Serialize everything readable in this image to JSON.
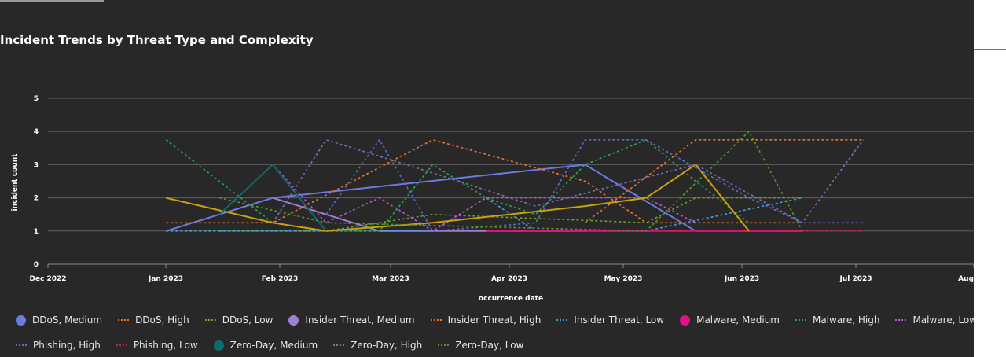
{
  "title": "Incident Trends by Threat Type and Complexity",
  "chart_data": {
    "type": "line",
    "title": "Incident Trends by Threat Type and Complexity",
    "xlabel": "occurrence date",
    "ylabel": "incident count",
    "x_ticks": [
      "Dec 2022",
      "Jan 2023",
      "Feb 2023",
      "Mar 2023",
      "Apr 2023",
      "May 2023",
      "Jun 2023",
      "Jul 2023",
      "Aug"
    ],
    "y_ticks": [
      "0",
      "1",
      "2",
      "3",
      "4",
      "5"
    ],
    "ylim": [
      0,
      5
    ],
    "xlim": [
      "2022-12-01",
      "2023-08-01"
    ],
    "grid": true,
    "legend_position": "bottom",
    "series": [
      {
        "name": "DDoS, Medium",
        "color": "#6b7be0",
        "style": "solid",
        "points": [
          [
            "2023-01-01",
            1
          ],
          [
            "2023-01-29",
            2
          ],
          [
            "2023-04-21",
            3
          ],
          [
            "2023-05-20",
            1
          ],
          [
            "2023-06-17",
            1
          ]
        ]
      },
      {
        "name": "DDoS, High",
        "color": "#e8742c",
        "style": "dash",
        "points": [
          [
            "2023-01-01",
            1.25
          ],
          [
            "2023-01-29",
            1.25
          ],
          [
            "2023-03-12",
            3.75
          ],
          [
            "2023-04-21",
            2.5
          ],
          [
            "2023-05-07",
            1.25
          ],
          [
            "2023-06-17",
            1.25
          ]
        ]
      },
      {
        "name": "DDoS, Low",
        "color": "#6aa12a",
        "style": "dash",
        "points": [
          [
            "2023-01-15",
            1
          ],
          [
            "2023-02-12",
            1
          ],
          [
            "2023-03-12",
            1.5
          ],
          [
            "2023-05-07",
            1.25
          ],
          [
            "2023-05-20",
            2
          ],
          [
            "2023-06-17",
            2
          ]
        ]
      },
      {
        "name": "Insider Threat, Medium",
        "color": "#a07fd0",
        "style": "solid",
        "points": [
          [
            "2023-01-29",
            2
          ],
          [
            "2023-02-12",
            1.5
          ],
          [
            "2023-02-26",
            1
          ],
          [
            "2023-04-21",
            1
          ]
        ]
      },
      {
        "name": "Insider Threat, High",
        "color": "#e8742c",
        "style": "dash",
        "points": [
          [
            "2023-04-21",
            1.25
          ],
          [
            "2023-05-20",
            3.75
          ],
          [
            "2023-07-03",
            3.75
          ]
        ]
      },
      {
        "name": "Insider Threat, Low",
        "color": "#3fa0e0",
        "style": "dash",
        "points": [
          [
            "2023-01-01",
            1
          ],
          [
            "2023-03-12",
            1
          ],
          [
            "2023-03-26",
            2
          ],
          [
            "2023-04-08",
            1
          ],
          [
            "2023-05-07",
            1
          ],
          [
            "2023-06-17",
            2
          ]
        ]
      },
      {
        "name": "Malware, Medium",
        "color": "#e0108a",
        "style": "solid",
        "points": [
          [
            "2023-03-26",
            1
          ],
          [
            "2023-04-08",
            1
          ],
          [
            "2023-05-07",
            1
          ],
          [
            "2023-06-17",
            1
          ]
        ]
      },
      {
        "name": "Malware, High",
        "color": "#2aa54a",
        "style": "dash",
        "points": [
          [
            "2023-01-01",
            3.75
          ],
          [
            "2023-01-29",
            1.25
          ],
          [
            "2023-02-12",
            1
          ],
          [
            "2023-02-26",
            1
          ],
          [
            "2023-03-12",
            3
          ],
          [
            "2023-03-26",
            2
          ],
          [
            "2023-04-08",
            1.5
          ],
          [
            "2023-04-21",
            3
          ],
          [
            "2023-05-07",
            3.75
          ],
          [
            "2023-05-20",
            2.5
          ],
          [
            "2023-06-03",
            1.25
          ]
        ]
      },
      {
        "name": "Malware, Low",
        "color": "#c050d8",
        "style": "dash",
        "points": [
          [
            "2023-01-29",
            3
          ],
          [
            "2023-02-12",
            1.25
          ],
          [
            "2023-02-26",
            2
          ],
          [
            "2023-03-12",
            1
          ],
          [
            "2023-03-26",
            2
          ],
          [
            "2023-04-21",
            2
          ],
          [
            "2023-05-07",
            2
          ],
          [
            "2023-05-20",
            1.25
          ]
        ]
      },
      {
        "name": "Phishing, Medium",
        "color": "#c8a20e",
        "style": "solid",
        "points": [
          [
            "2023-01-01",
            2
          ],
          [
            "2023-01-29",
            1.25
          ],
          [
            "2023-02-12",
            1
          ],
          [
            "2023-03-12",
            1.25
          ],
          [
            "2023-04-21",
            1.75
          ],
          [
            "2023-05-07",
            2
          ],
          [
            "2023-05-20",
            3
          ],
          [
            "2023-06-03",
            1
          ]
        ]
      },
      {
        "name": "Phishing, High",
        "color": "#5a6ed0",
        "style": "dash",
        "points": [
          [
            "2023-02-12",
            1.5
          ],
          [
            "2023-02-26",
            3.75
          ],
          [
            "2023-03-12",
            1
          ],
          [
            "2023-04-08",
            1.25
          ],
          [
            "2023-04-21",
            3.75
          ],
          [
            "2023-05-07",
            3.75
          ],
          [
            "2023-06-03",
            2
          ],
          [
            "2023-06-17",
            1.25
          ],
          [
            "2023-07-03",
            1.25
          ]
        ]
      },
      {
        "name": "Phishing, Low",
        "color": "#d0184e",
        "style": "dash",
        "points": [
          [
            "2023-05-07",
            1
          ],
          [
            "2023-07-03",
            1
          ]
        ]
      },
      {
        "name": "Zero-Day, Medium",
        "color": "#0d6b6b",
        "style": "solid",
        "points": [
          [
            "2023-01-15",
            1.5
          ],
          [
            "2023-01-29",
            3
          ],
          [
            "2023-02-12",
            1
          ]
        ]
      },
      {
        "name": "Zero-Day, High",
        "color": "#7a6fb0",
        "style": "dash",
        "points": [
          [
            "2023-01-29",
            1.25
          ],
          [
            "2023-02-12",
            3.75
          ],
          [
            "2023-03-12",
            2.75
          ],
          [
            "2023-04-08",
            1.75
          ],
          [
            "2023-05-20",
            3
          ],
          [
            "2023-06-17",
            1.25
          ],
          [
            "2023-07-03",
            3.75
          ]
        ]
      },
      {
        "name": "Zero-Day, Low",
        "color": "#4a9a2a",
        "style": "dash",
        "points": [
          [
            "2023-01-15",
            2
          ],
          [
            "2023-02-12",
            1.25
          ],
          [
            "2023-05-07",
            1
          ],
          [
            "2023-06-03",
            4
          ],
          [
            "2023-06-17",
            1
          ]
        ]
      }
    ]
  }
}
